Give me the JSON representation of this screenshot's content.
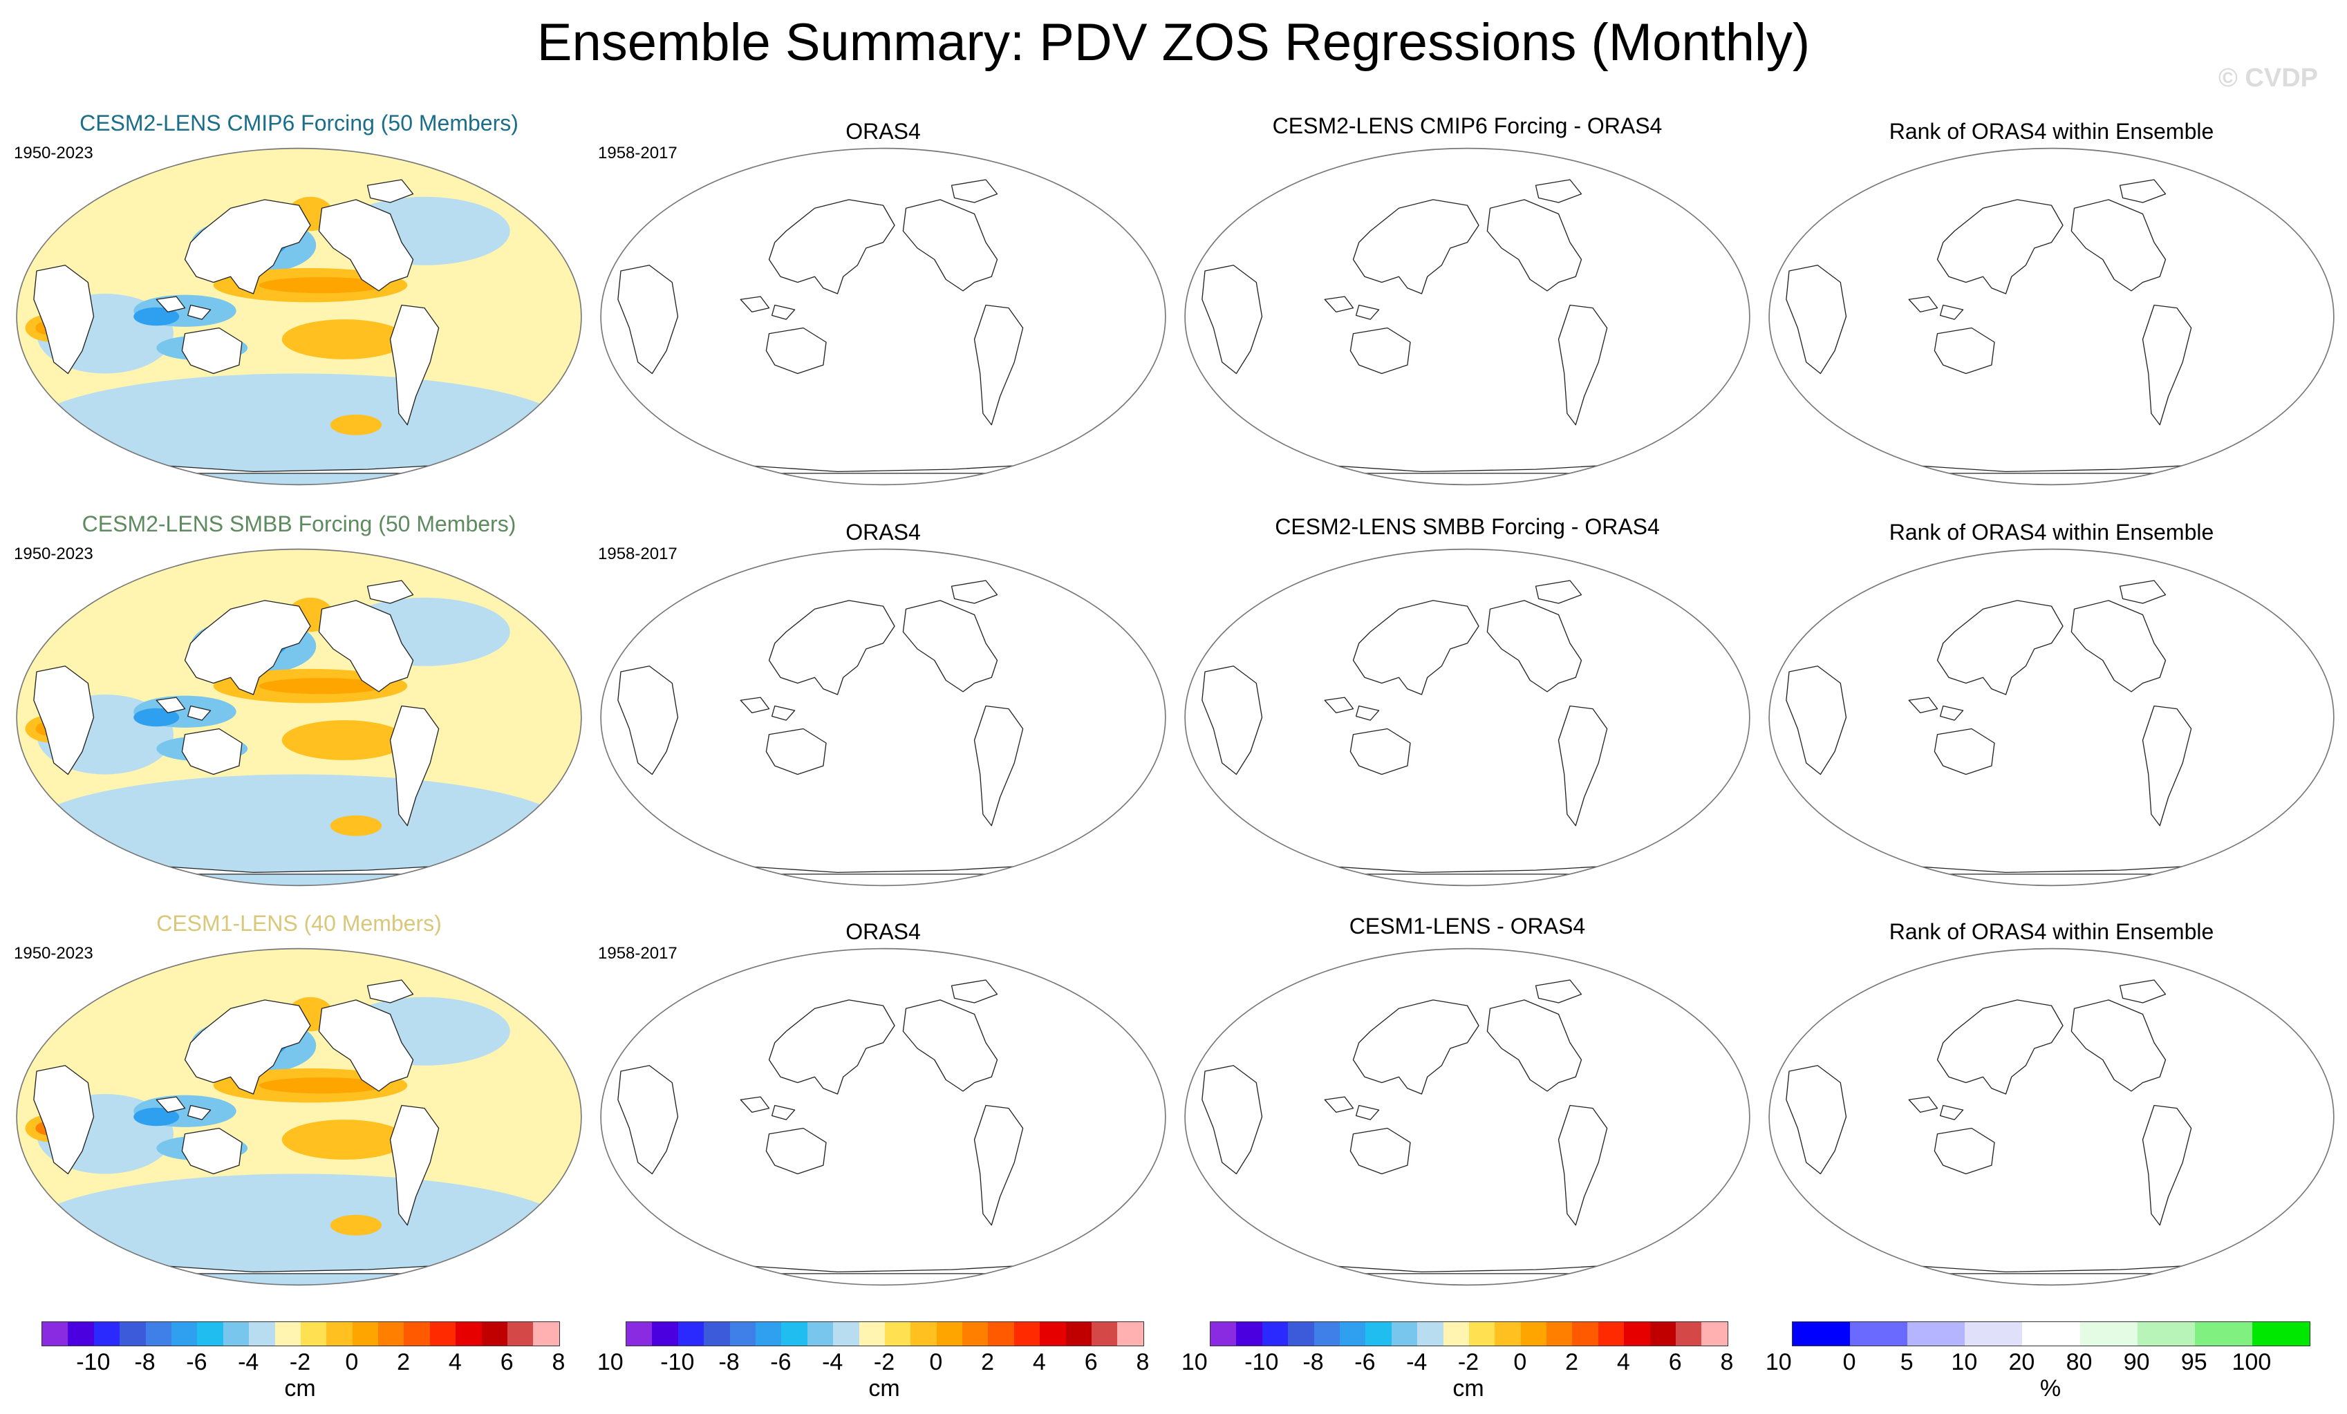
{
  "title": "Ensemble Summary: PDV ZOS Regressions (Monthly)",
  "watermark": "© CVDP",
  "rows": [
    {
      "ensemble_title": "CESM2-LENS CMIP6 Forcing (50 Members)",
      "ensemble_color": "#1a6e8a",
      "ensemble_period": "1950-2023",
      "obs_title": "ORAS4",
      "obs_period": "1958-2017",
      "diff_title": "CESM2-LENS CMIP6 Forcing - ORAS4",
      "rank_title": "Rank of ORAS4 within Ensemble"
    },
    {
      "ensemble_title": "CESM2-LENS SMBB Forcing (50 Members)",
      "ensemble_color": "#5e8a60",
      "ensemble_period": "1950-2023",
      "obs_title": "ORAS4",
      "obs_period": "1958-2017",
      "diff_title": "CESM2-LENS SMBB Forcing - ORAS4",
      "rank_title": "Rank of ORAS4 within Ensemble"
    },
    {
      "ensemble_title": "CESM1-LENS (40 Members)",
      "ensemble_color": "#d9c87a",
      "ensemble_period": "1950-2023",
      "obs_title": "ORAS4",
      "obs_period": "1958-2017",
      "diff_title": "CESM1-LENS - ORAS4",
      "rank_title": "Rank of ORAS4 within Ensemble"
    }
  ],
  "colorbar_cm": {
    "unit": "cm",
    "colors": [
      "#8a2be2",
      "#4b00e0",
      "#2a2aff",
      "#3b5bdb",
      "#3f7fe8",
      "#2fa0ef",
      "#1fbdf0",
      "#78c6ee",
      "#b8dcf0",
      "#fff5b0",
      "#ffe050",
      "#ffc020",
      "#ffa500",
      "#ff7f00",
      "#ff5a00",
      "#ff2a00",
      "#e60000",
      "#c00000",
      "#d44848",
      "#ffb0b0"
    ],
    "labels": [
      "-10",
      "-8",
      "-6",
      "-4",
      "-2",
      "0",
      "2",
      "4",
      "6",
      "8",
      "10"
    ]
  },
  "colorbar_rank": {
    "unit": "%",
    "colors": [
      "#0000ff",
      "#6a6aff",
      "#b4b4ff",
      "#e0e0fa",
      "#ffffff",
      "#e4fbe4",
      "#b8f4b8",
      "#80f080",
      "#00e800"
    ],
    "labels": [
      "0",
      "5",
      "10",
      "20",
      "80",
      "90",
      "95",
      "100"
    ]
  }
}
